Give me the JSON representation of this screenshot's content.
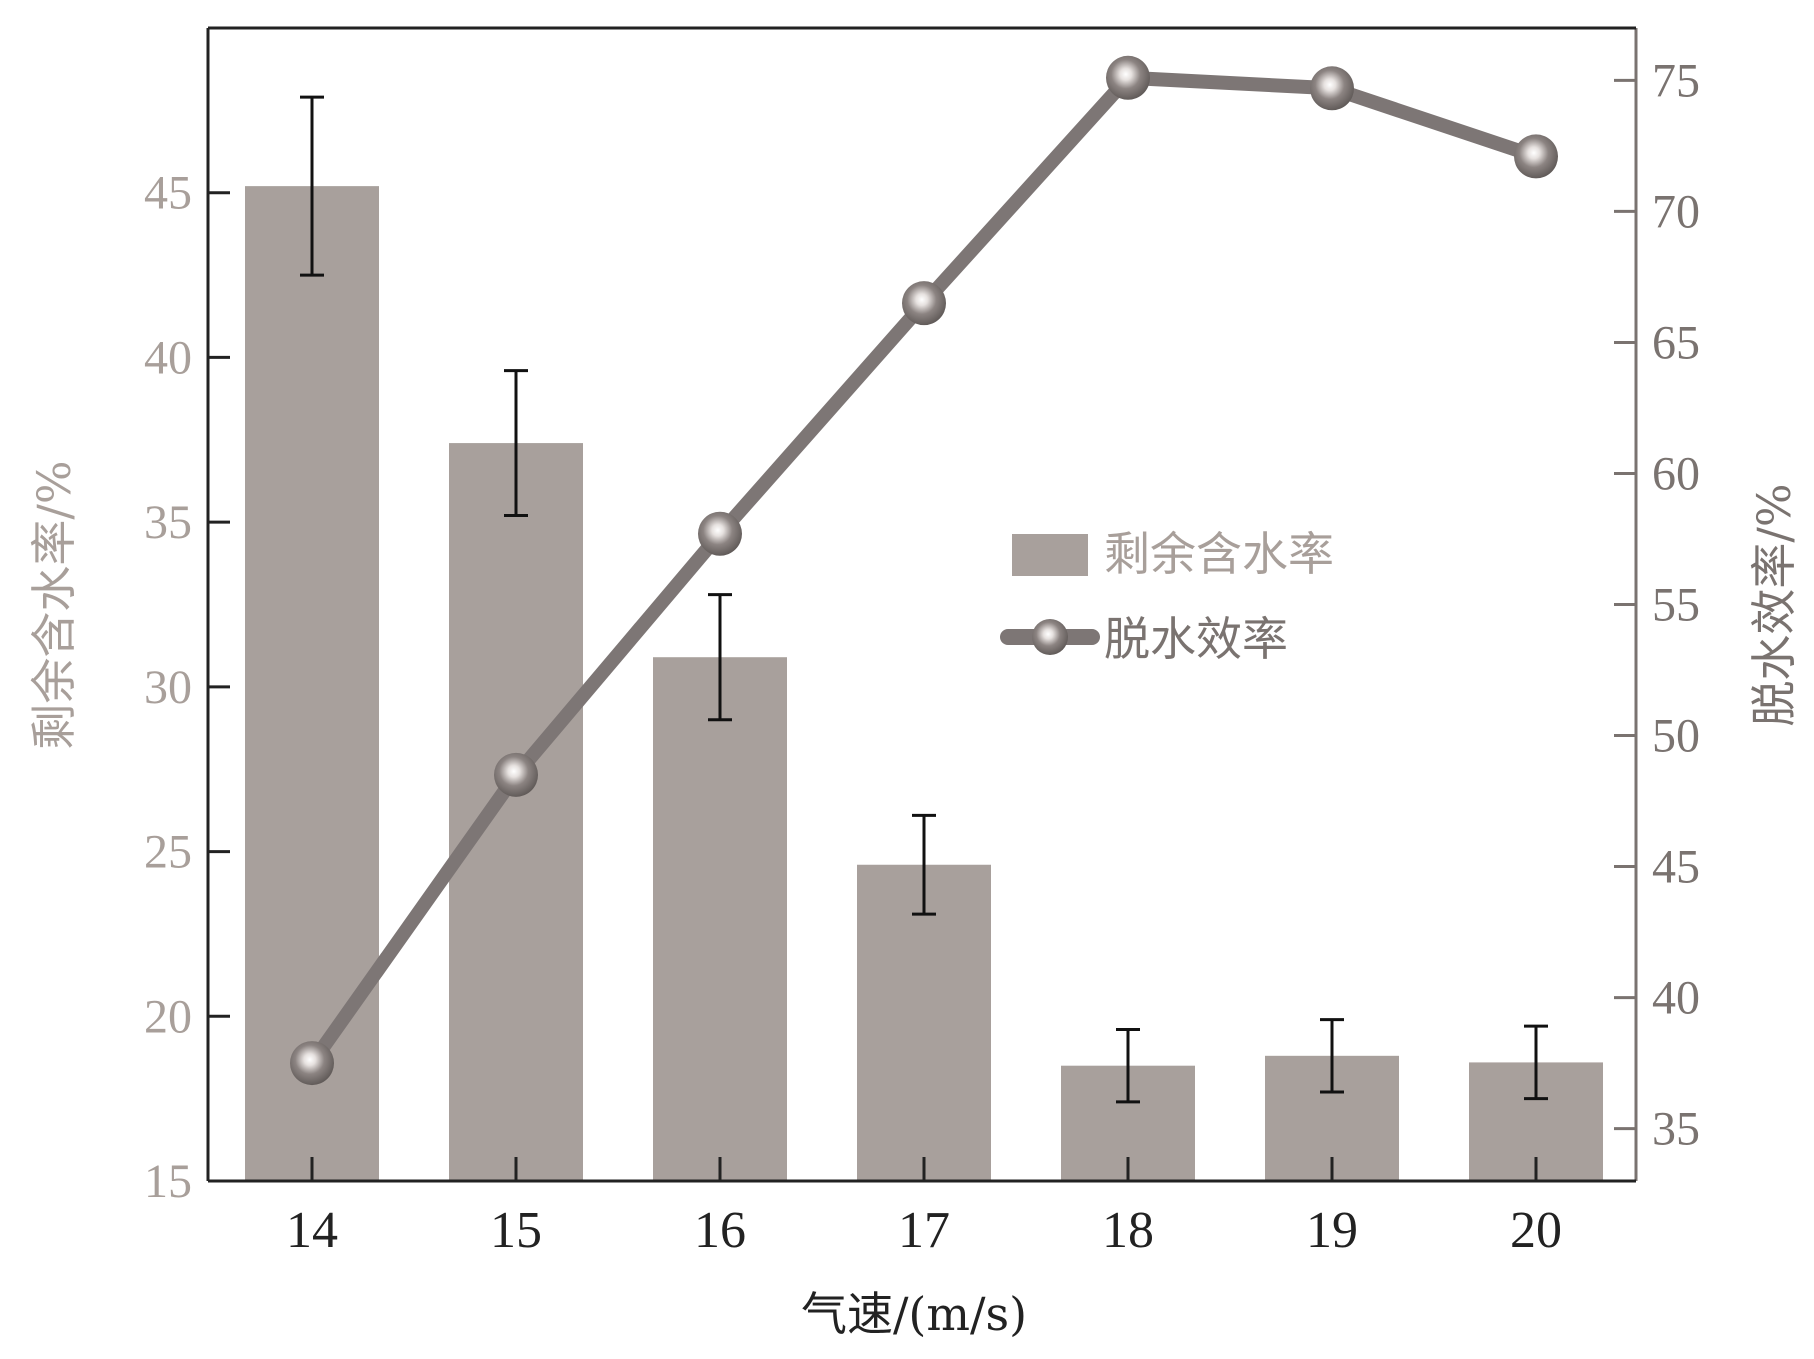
{
  "chart_data": {
    "type": "bar+line",
    "title": "",
    "xlabel": "气速/(m/s)",
    "categories": [
      "14",
      "15",
      "16",
      "17",
      "18",
      "19",
      "20"
    ],
    "left_axis": {
      "label": "剩余含水率/%",
      "ylim": [
        15,
        50
      ],
      "ticks": [
        "15",
        "20",
        "25",
        "30",
        "35",
        "40",
        "45"
      ]
    },
    "right_axis": {
      "label": "脱水效率/%",
      "ylim": [
        33,
        77
      ],
      "ticks": [
        "35",
        "40",
        "45",
        "50",
        "55",
        "60",
        "65",
        "70",
        "75"
      ]
    },
    "series": [
      {
        "name": "剩余含水率",
        "type": "bar",
        "axis": "left",
        "values": [
          45.2,
          37.4,
          30.9,
          24.6,
          18.5,
          18.8,
          18.6
        ],
        "error": [
          2.7,
          2.2,
          1.9,
          1.5,
          1.1,
          1.1,
          1.1
        ]
      },
      {
        "name": "脱水效率",
        "type": "line",
        "axis": "right",
        "values": [
          37.5,
          48.5,
          57.7,
          66.5,
          75.1,
          74.7,
          72.1
        ]
      }
    ],
    "legend_position": "center-right",
    "grid": false,
    "colors": {
      "bar": "#a8a09c",
      "line": "#7d7675",
      "marker": "#6f6866",
      "error_bar": "#111111",
      "left_axis_text": "#a89f9a",
      "right_axis_text": "#7a7370",
      "axis_line": "#222222"
    }
  }
}
